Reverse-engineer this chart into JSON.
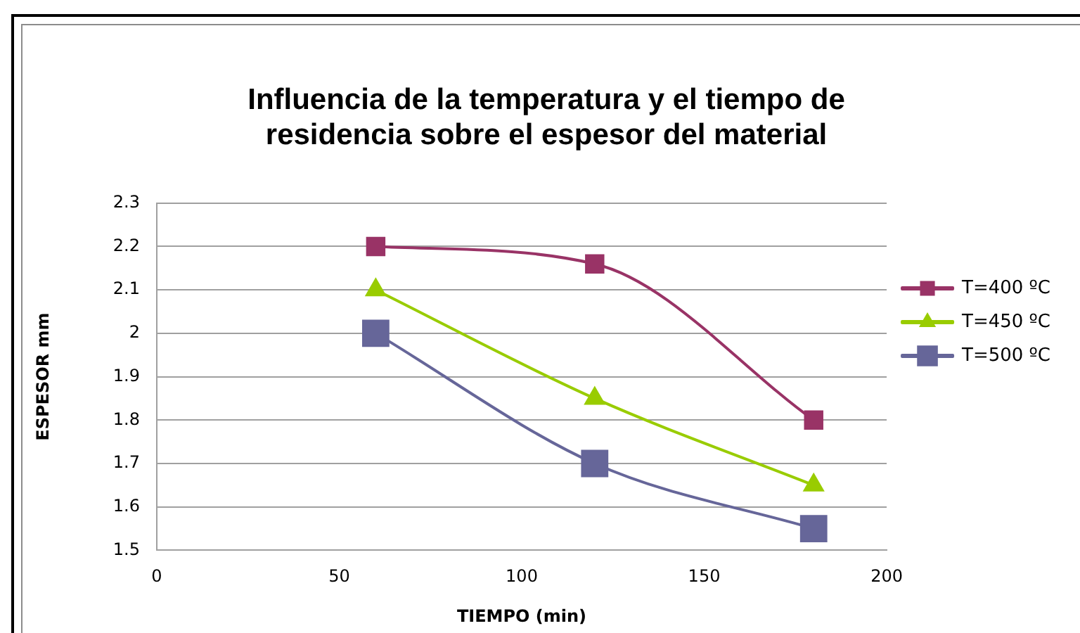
{
  "chart_data": {
    "type": "line",
    "title": "Influencia de la temperatura y el tiempo de residencia sobre el espesor del material",
    "xlabel": "TIEMPO (min)",
    "ylabel": "ESPESOR mm",
    "x": [
      60,
      120,
      180
    ],
    "series": [
      {
        "name": "T=400 ºC",
        "color": "#993366",
        "marker": "square",
        "values": [
          2.2,
          2.16,
          1.8
        ]
      },
      {
        "name": "T=450 ºC",
        "color": "#99cc00",
        "marker": "triangle",
        "values": [
          2.1,
          1.85,
          1.65
        ]
      },
      {
        "name": "T=500 ºC",
        "color": "#666699",
        "marker": "square",
        "values": [
          2.0,
          1.7,
          1.55
        ]
      }
    ],
    "xlim": [
      0,
      200
    ],
    "xticks": [
      0,
      50,
      100,
      150,
      200
    ],
    "ylim": [
      1.5,
      2.3
    ],
    "yticks": [
      1.5,
      1.6,
      1.7,
      1.8,
      1.9,
      2,
      2.1,
      2.2,
      2.3
    ],
    "grid": "y",
    "legend": "right"
  }
}
